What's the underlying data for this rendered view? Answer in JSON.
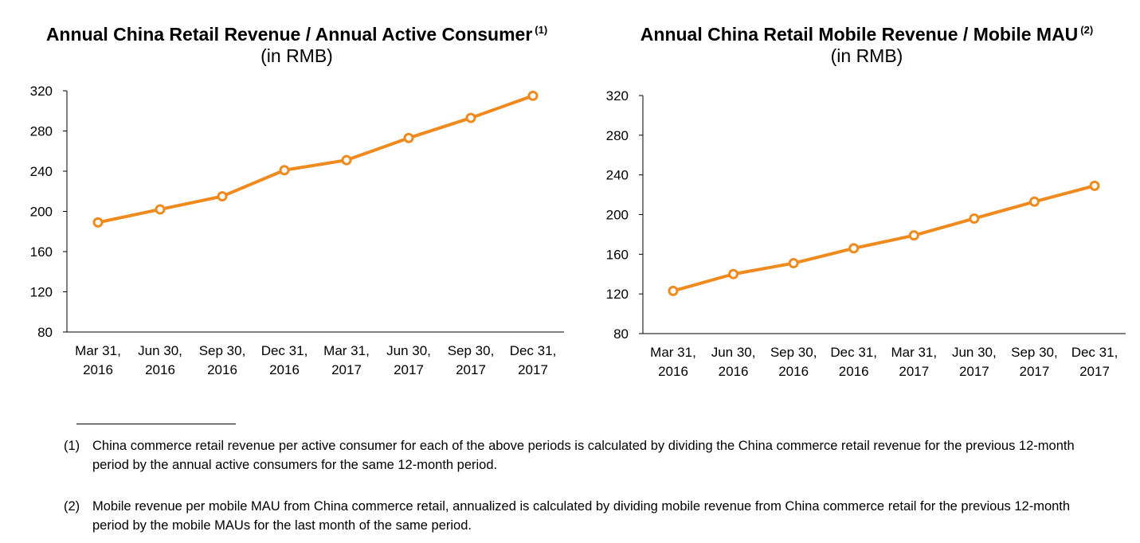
{
  "chart_data": [
    {
      "type": "line",
      "title": "Annual China Retail Revenue / Annual Active Consumer",
      "title_note": "(1)",
      "subtitle": "(in RMB)",
      "categories": [
        [
          "Mar 31,",
          "2016"
        ],
        [
          "Jun 30,",
          "2016"
        ],
        [
          "Sep 30,",
          "2016"
        ],
        [
          "Dec 31,",
          "2016"
        ],
        [
          "Mar 31,",
          "2017"
        ],
        [
          "Jun 30,",
          "2017"
        ],
        [
          "Sep 30,",
          "2017"
        ],
        [
          "Dec 31,",
          "2017"
        ]
      ],
      "values": [
        189,
        202,
        215,
        241,
        251,
        273,
        293,
        315
      ],
      "ylim": [
        80,
        320
      ],
      "yticks": [
        80,
        120,
        160,
        200,
        240,
        280,
        320
      ],
      "grid": false,
      "legend": "none",
      "color": "#EE8A1E"
    },
    {
      "type": "line",
      "title": "Annual China Retail Mobile Revenue / Mobile MAU",
      "title_note": "(2)",
      "subtitle": "(in RMB)",
      "categories": [
        [
          "Mar 31,",
          "2016"
        ],
        [
          "Jun 30,",
          "2016"
        ],
        [
          "Sep 30,",
          "2016"
        ],
        [
          "Dec 31,",
          "2016"
        ],
        [
          "Mar 31,",
          "2017"
        ],
        [
          "Jun 30,",
          "2017"
        ],
        [
          "Sep 30,",
          "2017"
        ],
        [
          "Dec 31,",
          "2017"
        ]
      ],
      "values": [
        123,
        140,
        151,
        166,
        179,
        196,
        213,
        229
      ],
      "ylim": [
        80,
        320
      ],
      "yticks": [
        80,
        120,
        160,
        200,
        240,
        280,
        320
      ],
      "grid": false,
      "legend": "none",
      "color": "#EE8A1E"
    }
  ],
  "footnotes": [
    {
      "mark": "(1)",
      "text": "China commerce retail revenue per active consumer for each of the above periods is calculated by dividing the China commerce retail revenue for the previous 12-month period by the annual active consumers for the same 12-month period."
    },
    {
      "mark": "(2)",
      "text": "Mobile revenue per mobile MAU from China commerce retail, annualized is calculated by dividing mobile revenue from China commerce retail for the previous 12-month period by the mobile MAUs for the last month of the same period."
    }
  ]
}
